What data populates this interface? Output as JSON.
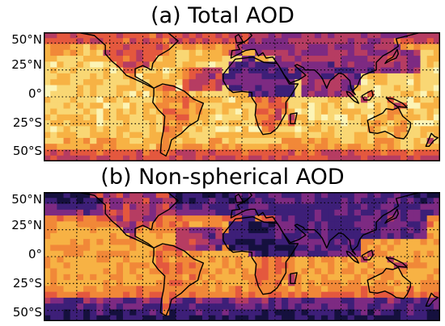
{
  "figure": {
    "panels": [
      {
        "title": "(a) Total AOD",
        "lat_ticks": [
          "50°N",
          "25°N",
          "0°",
          "25°S",
          "50°S"
        ],
        "lon_range": [
          -180,
          180
        ],
        "lat_range": [
          -60,
          60
        ],
        "gridlines": "dotted",
        "colormap": "inferno (dark purple = high, pale yellow = low)"
      },
      {
        "title": "(b) Non-spherical AOD",
        "lat_ticks": [
          "50°N",
          "25°N",
          "0°",
          "25°S",
          "50°S"
        ],
        "lon_range": [
          -180,
          180
        ],
        "lat_range": [
          -60,
          60
        ],
        "gridlines": "dotted",
        "colormap": "inferno (dark purple = high, pale yellow = low)"
      }
    ]
  },
  "colors": {
    "palette": [
      "#fcf4b6",
      "#f9d774",
      "#f7b244",
      "#f18838",
      "#e4583e",
      "#b63c62",
      "#7d2a82",
      "#3d1f78",
      "#15103e"
    ],
    "coast": "#000000"
  }
}
